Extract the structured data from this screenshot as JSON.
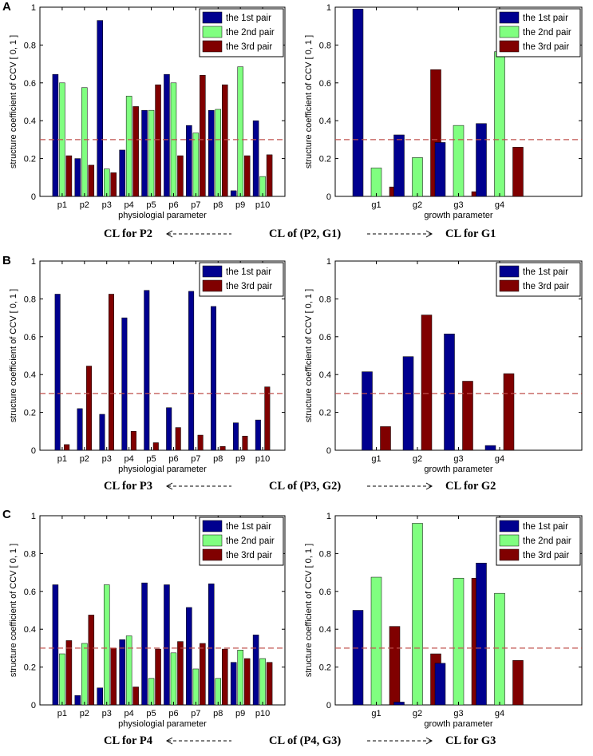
{
  "colors": {
    "first": "#00008F",
    "second": "#80FF80",
    "third": "#800000",
    "threshold": "#C0504D"
  },
  "panels": [
    {
      "letter": "A",
      "cl_left": "CL for P2",
      "cl_center": "CL of (P2, G1)",
      "cl_right": "CL for G1"
    },
    {
      "letter": "B",
      "cl_left": "CL for P3",
      "cl_center": "CL of (P3, G2)",
      "cl_right": "CL for G2"
    },
    {
      "letter": "C",
      "cl_left": "CL for P4",
      "cl_center": "CL of (P4, G3)",
      "cl_right": "CL for G3"
    }
  ],
  "chart_data": [
    {
      "type": "bar",
      "panel": "A",
      "side": "left",
      "categories": [
        "p1",
        "p2",
        "p3",
        "p4",
        "p5",
        "p6",
        "p7",
        "p8",
        "p9",
        "p10"
      ],
      "series": [
        {
          "name": "the 1st pair",
          "color": "first",
          "values": [
            0.645,
            0.2,
            0.93,
            0.245,
            0.455,
            0.645,
            0.375,
            0.455,
            0.03,
            0.4
          ]
        },
        {
          "name": "the 2nd pair",
          "color": "second",
          "values": [
            0.6,
            0.575,
            0.145,
            0.53,
            0.455,
            0.6,
            0.335,
            0.46,
            0.685,
            0.105
          ]
        },
        {
          "name": "the 3rd pair",
          "color": "third",
          "values": [
            0.215,
            0.165,
            0.125,
            0.475,
            0.59,
            0.215,
            0.64,
            0.59,
            0.215,
            0.22
          ]
        }
      ],
      "threshold": 0.3,
      "xlabel": "physiologial parameter",
      "ylabel": "structure coefficient of CCV [ 0, 1 ]",
      "ylim": [
        0,
        1
      ],
      "yticks": [
        "0",
        "0.2",
        "0.4",
        "0.6",
        "0.8",
        "1"
      ],
      "legend": "top-right"
    },
    {
      "type": "bar",
      "panel": "A",
      "side": "right",
      "categories": [
        "g1",
        "g2",
        "g3",
        "g4"
      ],
      "series": [
        {
          "name": "the 1st pair",
          "color": "first",
          "values": [
            0.99,
            0.325,
            0.285,
            0.385
          ]
        },
        {
          "name": "the 2nd pair",
          "color": "second",
          "values": [
            0.15,
            0.205,
            0.375,
            0.765
          ]
        },
        {
          "name": "the 3rd pair",
          "color": "third",
          "values": [
            0.05,
            0.67,
            0.025,
            0.26
          ]
        }
      ],
      "threshold": 0.3,
      "xlabel": "growth parameter",
      "ylabel": "structure coefficient of CCV [ 0, 1 ]",
      "ylim": [
        0,
        1
      ],
      "yticks": [
        "0",
        "0.2",
        "0.4",
        "0.6",
        "0.8",
        "1"
      ],
      "legend": "top-right"
    },
    {
      "type": "bar",
      "panel": "B",
      "side": "left",
      "categories": [
        "p1",
        "p2",
        "p3",
        "p4",
        "p5",
        "p6",
        "p7",
        "p8",
        "p9",
        "p10"
      ],
      "series": [
        {
          "name": "the 1st pair",
          "color": "first",
          "values": [
            0.825,
            0.22,
            0.19,
            0.7,
            0.845,
            0.225,
            0.84,
            0.76,
            0.145,
            0.16
          ]
        },
        {
          "name": "the 3rd pair",
          "color": "third",
          "values": [
            0.03,
            0.445,
            0.825,
            0.1,
            0.04,
            0.12,
            0.08,
            0.02,
            0.075,
            0.335
          ]
        }
      ],
      "threshold": 0.3,
      "xlabel": "physiologial parameter",
      "ylabel": "structure coefficient of CCV [ 0, 1 ]",
      "ylim": [
        0,
        1
      ],
      "yticks": [
        "0",
        "0.2",
        "0.4",
        "0.6",
        "0.8",
        "1"
      ],
      "legend": "top-right"
    },
    {
      "type": "bar",
      "panel": "B",
      "side": "right",
      "categories": [
        "g1",
        "g2",
        "g3",
        "g4"
      ],
      "series": [
        {
          "name": "the 1st pair",
          "color": "first",
          "values": [
            0.415,
            0.495,
            0.615,
            0.025
          ]
        },
        {
          "name": "the 3rd pair",
          "color": "third",
          "values": [
            0.125,
            0.715,
            0.365,
            0.405
          ]
        }
      ],
      "threshold": 0.3,
      "xlabel": "growth parameter",
      "ylabel": "structure coefficient of CCV [ 0, 1 ]",
      "ylim": [
        0,
        1
      ],
      "yticks": [
        "0",
        "0.2",
        "0.4",
        "0.6",
        "0.8",
        "1"
      ],
      "legend": "top-right"
    },
    {
      "type": "bar",
      "panel": "C",
      "side": "left",
      "categories": [
        "p1",
        "p2",
        "p3",
        "p4",
        "p5",
        "p6",
        "p7",
        "p8",
        "p9",
        "p10"
      ],
      "series": [
        {
          "name": "the 1st pair",
          "color": "first",
          "values": [
            0.635,
            0.05,
            0.09,
            0.345,
            0.645,
            0.635,
            0.515,
            0.64,
            0.225,
            0.37
          ]
        },
        {
          "name": "the 2nd pair",
          "color": "second",
          "values": [
            0.27,
            0.325,
            0.635,
            0.365,
            0.14,
            0.275,
            0.19,
            0.14,
            0.29,
            0.245
          ]
        },
        {
          "name": "the 3rd pair",
          "color": "third",
          "values": [
            0.34,
            0.475,
            0.3,
            0.095,
            0.295,
            0.335,
            0.325,
            0.295,
            0.245,
            0.225
          ]
        }
      ],
      "threshold": 0.3,
      "xlabel": "physiologial parameter",
      "ylabel": "structure coefficient of CCV [ 0, 1 ]",
      "ylim": [
        0,
        1
      ],
      "yticks": [
        "0",
        "0.2",
        "0.4",
        "0.6",
        "0.8",
        "1"
      ],
      "legend": "top-right"
    },
    {
      "type": "bar",
      "panel": "C",
      "side": "right",
      "categories": [
        "g1",
        "g2",
        "g3",
        "g4"
      ],
      "series": [
        {
          "name": "the 1st pair",
          "color": "first",
          "values": [
            0.5,
            0.015,
            0.22,
            0.75
          ]
        },
        {
          "name": "the 2nd pair",
          "color": "second",
          "values": [
            0.675,
            0.96,
            0.67,
            0.59
          ]
        },
        {
          "name": "the 3rd pair",
          "color": "third",
          "values": [
            0.415,
            0.27,
            0.67,
            0.235
          ]
        }
      ],
      "threshold": 0.3,
      "xlabel": "growth parameter",
      "ylabel": "structure coefficient of CCV [ 0, 1 ]",
      "ylim": [
        0,
        1
      ],
      "yticks": [
        "0",
        "0.2",
        "0.4",
        "0.6",
        "0.8",
        "1"
      ],
      "legend": "top-right"
    }
  ]
}
